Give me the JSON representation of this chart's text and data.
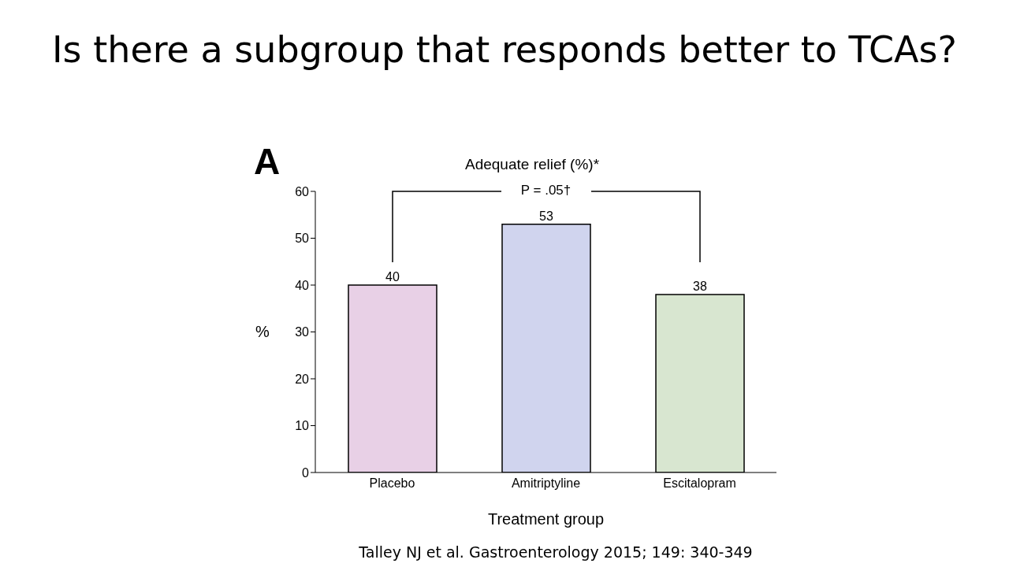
{
  "chart_data": {
    "type": "bar",
    "title": "Is there a subgroup that responds better to TCAs?",
    "subtitle": "Adequate relief (%)*",
    "xlabel": "Treatment group",
    "ylabel": "%",
    "categories": [
      "Placebo",
      "Amitriptyline",
      "Escitalopram"
    ],
    "values": [
      40,
      53,
      38
    ],
    "colors": [
      "#e8d0e6",
      "#d0d4ee",
      "#d8e6d0"
    ],
    "ylim": [
      0,
      60
    ],
    "yticks": [
      0,
      10,
      20,
      30,
      40,
      50,
      60
    ],
    "data_labels": true,
    "grid": false,
    "legend": false,
    "annotations": [
      "A",
      "P = .05†",
      "Talley NJ et al. Gastroenterology 2015; 149: 340-349"
    ]
  }
}
